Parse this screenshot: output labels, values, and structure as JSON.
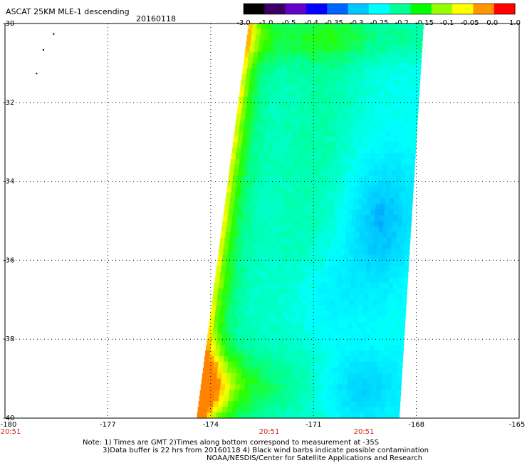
{
  "header": {
    "title": "ASCAT 25KM MLE-1 descending",
    "date": "20160118"
  },
  "colorbar": {
    "ticks": [
      "-3.0",
      "-1.0",
      "-0.5",
      "-0.4",
      "-0.35",
      "-0.3",
      "-0.25",
      "-0.2",
      "-0.15",
      "-0.1",
      "-0.05",
      "0.0",
      "1.0"
    ],
    "colors": [
      "#000000",
      "#3c0064",
      "#6400c8",
      "#0000ff",
      "#0064ff",
      "#00c8ff",
      "#00ffff",
      "#00ff96",
      "#00ff00",
      "#96ff00",
      "#ffff00",
      "#ff9600",
      "#ff0000"
    ]
  },
  "axes": {
    "lon_ticks": [
      "-180",
      "-177",
      "-174",
      "-171",
      "-168",
      "-165"
    ],
    "lat_ticks": [
      "-30",
      "-32",
      "-34",
      "-36",
      "-38",
      "-40"
    ]
  },
  "times": [
    "20:51",
    "20:51",
    "20:51"
  ],
  "notes": [
    "Note: 1) Times are GMT 2)Times along bottom correspond to measurement at -35S",
    "3)Data buffer is 22 hrs from 20160118 4) Black wind barbs indicate possible contamination",
    "NOAA/NESDIS/Center for Satellite Applications and Research"
  ],
  "map_data": {
    "type": "swath-heatmap",
    "variable": "MLE-1",
    "lon_range": [
      -180,
      -165
    ],
    "lat_range": [
      -40,
      -30
    ],
    "swath_main": {
      "top_lat": -30,
      "bottom_lat": -40,
      "west_lon_top": -172.9,
      "east_lon_top": -167.8,
      "west_lon_bottom": -174.4,
      "east_lon_bottom": -168.5
    },
    "swath_corner": {
      "lat_range": [
        -30,
        -32
      ],
      "lon_range": [
        -180,
        -179.0
      ]
    },
    "field_notes": [
      "low (yellow-orange) values along the west edge",
      "minimum (blue) near -168.5 lon, -35 lat",
      "moderate cyan field elsewhere"
    ]
  }
}
